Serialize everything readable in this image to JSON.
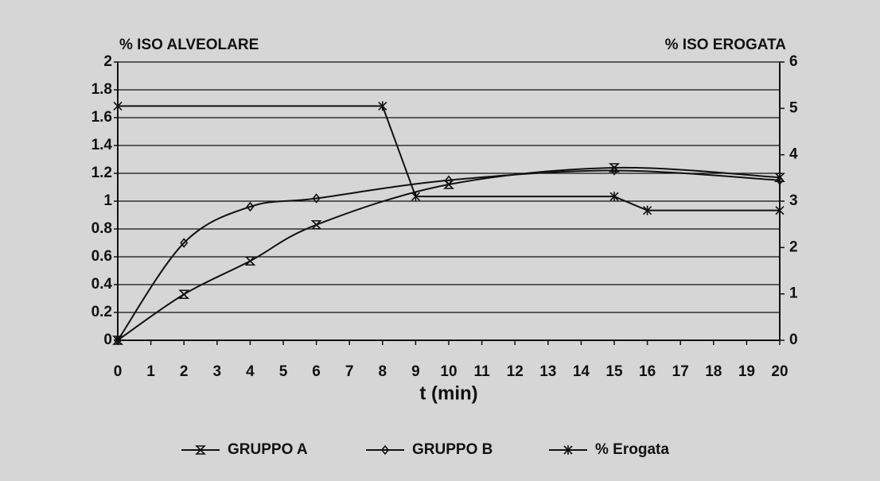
{
  "chart_data": {
    "type": "line",
    "y_label": "% ISO ALVEOLARE",
    "y2_label": "% ISO EROGATA",
    "x_label": "t (min)",
    "xlim": [
      0,
      20
    ],
    "xticks": [
      0,
      1,
      2,
      3,
      4,
      5,
      6,
      7,
      8,
      9,
      10,
      11,
      12,
      13,
      14,
      15,
      16,
      17,
      18,
      19,
      20
    ],
    "ylim": [
      0,
      2
    ],
    "yticks": [
      0,
      0.2,
      0.4,
      0.6,
      0.8,
      1,
      1.2,
      1.4,
      1.6,
      1.8,
      2
    ],
    "y2lim": [
      0,
      6
    ],
    "y2ticks": [
      0,
      1,
      2,
      3,
      4,
      5,
      6
    ],
    "grid": true,
    "legend": "bottom",
    "series": [
      {
        "name": "GRUPPO A",
        "color": "#111111",
        "marker": "hourglass",
        "smooth": true,
        "x": [
          0,
          2,
          4,
          6,
          10,
          15,
          20
        ],
        "values": [
          0,
          0.33,
          0.57,
          0.83,
          1.12,
          1.24,
          1.17
        ]
      },
      {
        "name": "GRUPPO B",
        "color": "#111111",
        "marker": "diamond",
        "smooth": true,
        "x": [
          0,
          2,
          4,
          6,
          10,
          15,
          20
        ],
        "values": [
          0,
          0.7,
          0.96,
          1.02,
          1.15,
          1.22,
          1.15
        ]
      },
      {
        "name": "% Erogata",
        "color": "#111111",
        "marker": "asterisk",
        "smooth": false,
        "axis": "y2",
        "x": [
          0,
          8,
          9,
          15,
          16,
          20
        ],
        "values": [
          5.05,
          5.05,
          3.1,
          3.1,
          2.8,
          2.8
        ]
      }
    ]
  }
}
